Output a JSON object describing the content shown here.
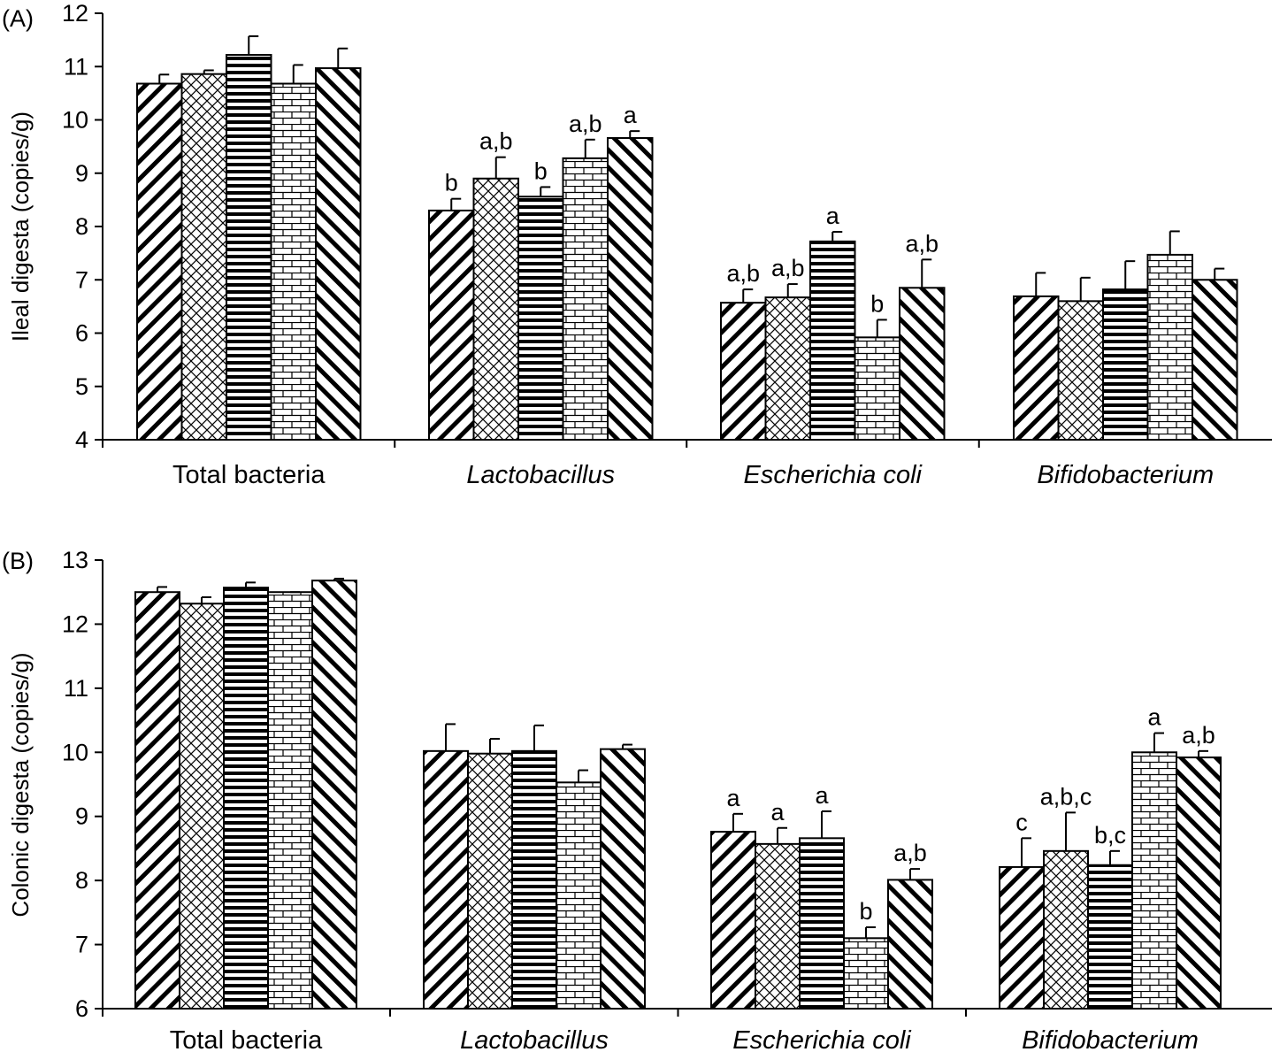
{
  "chart_data": [
    {
      "type": "bar",
      "panel_label": "(A)",
      "ylabel": "Ileal digesta (copies/g)",
      "ylim": [
        4,
        12
      ],
      "yticks": [
        4,
        5,
        6,
        7,
        8,
        9,
        10,
        11,
        12
      ],
      "categories": [
        "Total bacteria",
        "Lactobacillus",
        "Escherichia coli",
        "Bifidobacterium"
      ],
      "italic_categories": [
        false,
        true,
        true,
        true
      ],
      "series": [
        {
          "pattern": "diag-back",
          "values": [
            10.68,
            8.3,
            6.57,
            6.69
          ],
          "errors": [
            0.17,
            0.22,
            0.25,
            0.44
          ],
          "sig": [
            "",
            "b",
            "a,b",
            ""
          ]
        },
        {
          "pattern": "crosshatch",
          "values": [
            10.86,
            8.9,
            6.67,
            6.6
          ],
          "errors": [
            0.07,
            0.4,
            0.25,
            0.44
          ],
          "sig": [
            "",
            "a,b",
            "a,b",
            ""
          ]
        },
        {
          "pattern": "horizontal",
          "values": [
            11.22,
            8.56,
            7.72,
            6.82
          ],
          "errors": [
            0.35,
            0.18,
            0.18,
            0.53
          ],
          "sig": [
            "",
            "b",
            "a",
            ""
          ]
        },
        {
          "pattern": "brick",
          "values": [
            10.68,
            9.28,
            5.92,
            7.47
          ],
          "errors": [
            0.35,
            0.35,
            0.33,
            0.44
          ],
          "sig": [
            "",
            "a,b",
            "b",
            ""
          ]
        },
        {
          "pattern": "diag-fwd",
          "values": [
            10.97,
            9.66,
            6.85,
            7.0
          ],
          "errors": [
            0.37,
            0.13,
            0.53,
            0.21
          ],
          "sig": [
            "",
            "a",
            "a,b",
            ""
          ]
        }
      ]
    },
    {
      "type": "bar",
      "panel_label": "(B)",
      "ylabel": "Colonic digesta (copies/g)",
      "ylim": [
        6,
        13
      ],
      "yticks": [
        6,
        7,
        8,
        9,
        10,
        11,
        12,
        13
      ],
      "categories": [
        "Total bacteria",
        "Lactobacillus",
        "Escherichia coli",
        "Bifidobacterium"
      ],
      "italic_categories": [
        false,
        true,
        true,
        true
      ],
      "series": [
        {
          "pattern": "diag-back",
          "values": [
            12.5,
            10.02,
            8.76,
            8.21
          ],
          "errors": [
            0.08,
            0.42,
            0.28,
            0.45
          ],
          "sig": [
            "",
            "",
            "a",
            "c"
          ]
        },
        {
          "pattern": "crosshatch",
          "values": [
            12.32,
            9.98,
            8.57,
            8.46
          ],
          "errors": [
            0.1,
            0.23,
            0.25,
            0.6
          ],
          "sig": [
            "",
            "",
            "a",
            "a,b,c"
          ]
        },
        {
          "pattern": "horizontal",
          "values": [
            12.57,
            10.02,
            8.66,
            8.24
          ],
          "errors": [
            0.08,
            0.4,
            0.42,
            0.22
          ],
          "sig": [
            "",
            "",
            "a",
            "b,c"
          ]
        },
        {
          "pattern": "brick",
          "values": [
            12.5,
            9.53,
            7.1,
            10.0
          ],
          "errors": [
            0.0,
            0.19,
            0.17,
            0.3
          ],
          "sig": [
            "",
            "",
            "b",
            "a"
          ]
        },
        {
          "pattern": "diag-fwd",
          "values": [
            12.68,
            10.05,
            8.01,
            9.92
          ],
          "errors": [
            0.03,
            0.07,
            0.17,
            0.1
          ],
          "sig": [
            "",
            "",
            "a,b",
            "a,b"
          ]
        }
      ]
    }
  ]
}
